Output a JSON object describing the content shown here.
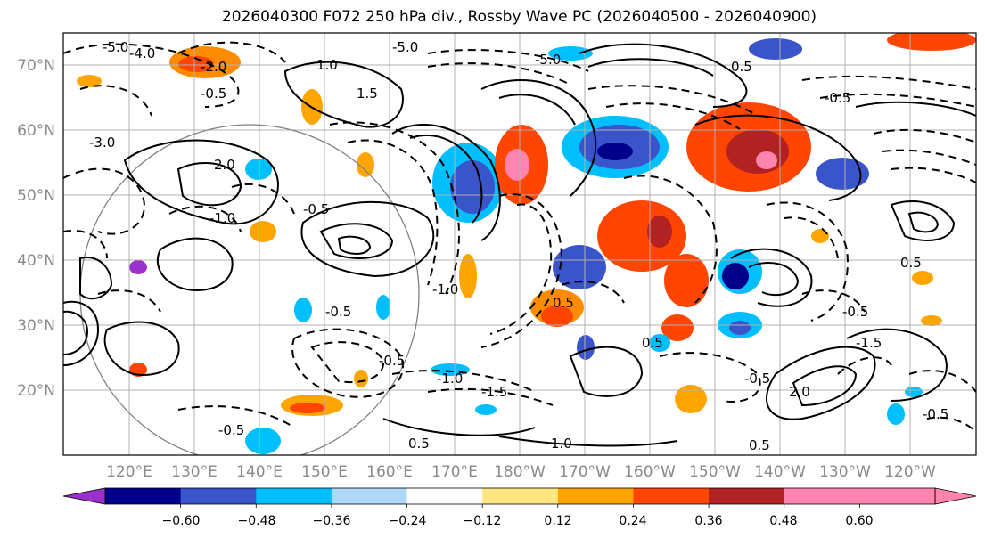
{
  "title": "2026040300 F072 250 hPa div., Rossby Wave PC (2026040500 - 2026040900)",
  "map": {
    "lat_labels": [
      "70°N",
      "60°N",
      "50°N",
      "40°N",
      "30°N",
      "20°N"
    ],
    "lon_labels": [
      "120°E",
      "130°E",
      "140°E",
      "150°E",
      "160°E",
      "170°E",
      "180°W",
      "170°W",
      "160°W",
      "150°W",
      "140°W",
      "130°W",
      "120°W"
    ],
    "contour_labels": [
      "-5.0",
      "-4.0",
      "-3.0",
      "-2.0",
      "-1.0",
      "-0.5",
      "0.5",
      "1.0",
      "1.5",
      "2.0",
      "-1.5",
      "-1.0",
      "0.5",
      "1.0",
      "-0.5",
      "2.0",
      "-5.0",
      "-5.0",
      "-0.5",
      "0.5",
      "-1.0",
      "-0.5",
      "0.5",
      "-1.5",
      "-0.5",
      "0.5",
      "-0.5",
      "-0.5",
      "-0.5",
      "-0.5",
      "0.5"
    ]
  },
  "colorbar": {
    "ticks": [
      "−0.60",
      "−0.48",
      "−0.36",
      "−0.24",
      "−0.12",
      "0.12",
      "0.24",
      "0.36",
      "0.48",
      "0.60"
    ],
    "colors": [
      "#9932cc",
      "#00008b",
      "#3a55c9",
      "#00bfff",
      "#add8f7",
      "#ffffff",
      "#ffe680",
      "#ffa500",
      "#ff4500",
      "#b22222",
      "#ff85b0",
      "#ff85b0"
    ]
  }
}
